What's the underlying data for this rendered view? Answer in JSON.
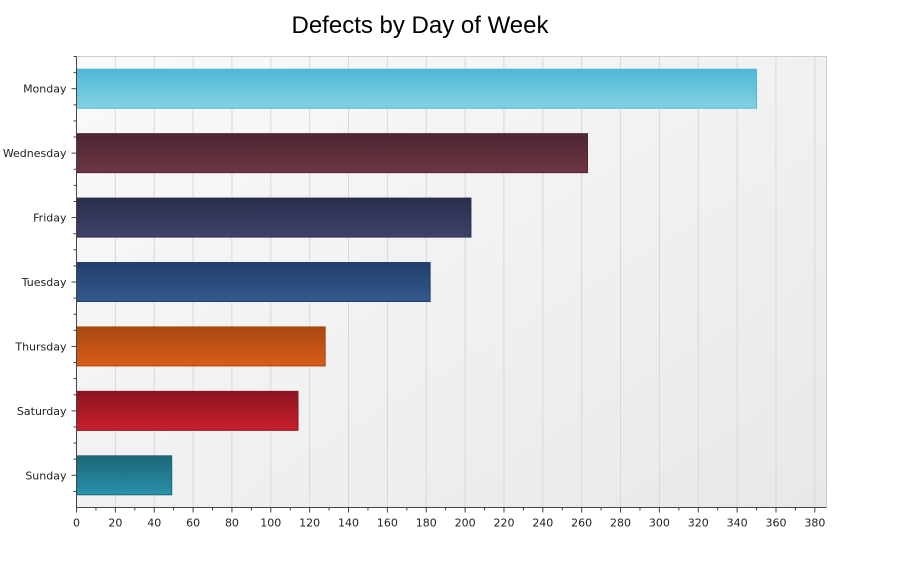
{
  "chart_data": {
    "type": "bar",
    "orientation": "horizontal",
    "title": "Defects by Day of Week",
    "xlabel": "",
    "ylabel": "",
    "categories": [
      "Monday",
      "Wednesday",
      "Friday",
      "Tuesday",
      "Thursday",
      "Saturday",
      "Sunday"
    ],
    "values": [
      350,
      263,
      203,
      182,
      128,
      114,
      49
    ],
    "colors": [
      [
        "#4db8d6",
        "#84d0e3"
      ],
      [
        "#4e2632",
        "#6d3644"
      ],
      [
        "#2b2d4d",
        "#3f4269"
      ],
      [
        "#223f6a",
        "#33598e"
      ],
      [
        "#a8480f",
        "#d95d17"
      ],
      [
        "#8c1420",
        "#c81f2b"
      ],
      [
        "#1d6678",
        "#2891a9"
      ]
    ],
    "xlim": [
      0,
      386
    ],
    "xticks": [
      0,
      20,
      40,
      60,
      80,
      100,
      120,
      140,
      160,
      180,
      200,
      220,
      240,
      260,
      280,
      300,
      320,
      340,
      360,
      380
    ],
    "grid": true,
    "legend": "none"
  }
}
